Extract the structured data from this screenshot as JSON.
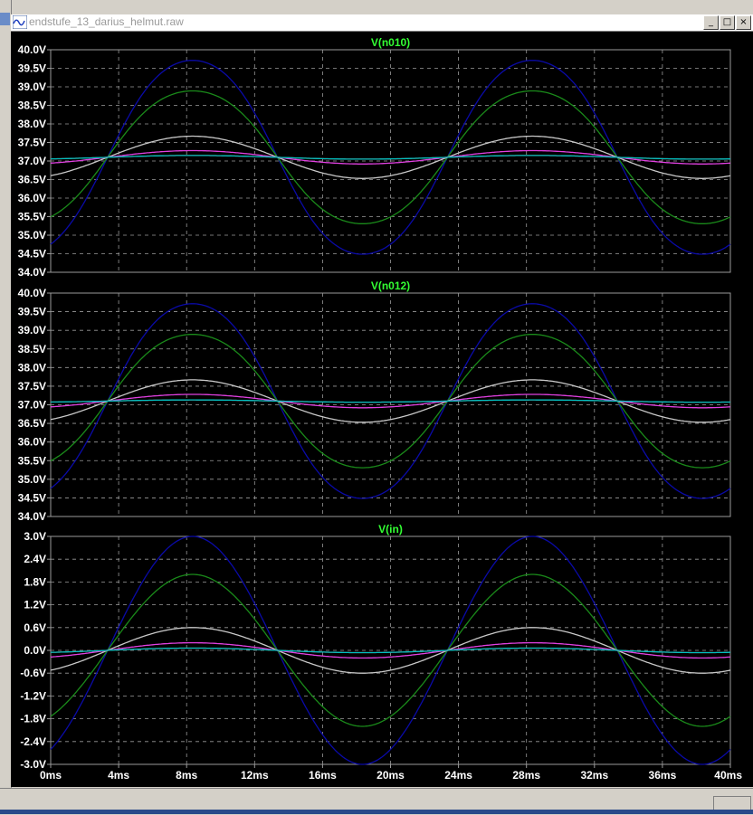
{
  "window": {
    "title": "endstufe_13_darius_helmut.raw",
    "buttons": [
      "_",
      "□",
      "×"
    ]
  },
  "colors": {
    "background": "#000000",
    "grid": "#9a9a9a",
    "title": "#33ff33",
    "axis_text": "#ffffff",
    "series": [
      "#0a0aa8",
      "#1a8a1a",
      "#c8c8c8",
      "#e040e0",
      "#cc4040",
      "#00c0c0"
    ]
  },
  "x_ticks": [
    "0ms",
    "4ms",
    "8ms",
    "12ms",
    "16ms",
    "20ms",
    "24ms",
    "28ms",
    "32ms",
    "36ms",
    "40ms"
  ],
  "chart_data": [
    {
      "type": "line",
      "title": "V(n010)",
      "xlim": [
        0,
        40
      ],
      "ylim": [
        34.0,
        40.0
      ],
      "yticks": [
        "40.0V",
        "39.5V",
        "39.0V",
        "38.5V",
        "38.0V",
        "37.5V",
        "37.0V",
        "36.5V",
        "36.0V",
        "35.5V",
        "35.0V",
        "34.5V",
        "34.0V"
      ],
      "offset": 37.1,
      "series": [
        {
          "amplitude": 2.7,
          "color_index": 0
        },
        {
          "amplitude": 1.85,
          "color_index": 1
        },
        {
          "amplitude": 0.57,
          "color_index": 2
        },
        {
          "amplitude": 0.18,
          "color_index": 3
        },
        {
          "amplitude": 0.05,
          "color_index": 4
        },
        {
          "amplitude": 0.05,
          "color_index": 5
        }
      ]
    },
    {
      "type": "line",
      "title": "V(n012)",
      "xlim": [
        0,
        40
      ],
      "ylim": [
        34.0,
        40.0
      ],
      "yticks": [
        "40.0V",
        "39.5V",
        "39.0V",
        "38.5V",
        "38.0V",
        "37.5V",
        "37.0V",
        "36.5V",
        "36.0V",
        "35.5V",
        "35.0V",
        "34.5V",
        "34.0V"
      ],
      "offset": 37.1,
      "series": [
        {
          "amplitude": 2.7,
          "color_index": 0
        },
        {
          "amplitude": 1.85,
          "color_index": 1
        },
        {
          "amplitude": 0.57,
          "color_index": 2
        },
        {
          "amplitude": 0.18,
          "color_index": 3
        },
        {
          "amplitude": 0.03,
          "color_index": 4
        },
        {
          "amplitude": 0.03,
          "color_index": 5
        }
      ]
    },
    {
      "type": "line",
      "title": "V(in)",
      "xlim": [
        0,
        40
      ],
      "ylim": [
        -3.0,
        3.0
      ],
      "yticks": [
        "3.0V",
        "2.4V",
        "1.8V",
        "1.2V",
        "0.6V",
        "0.0V",
        "-0.6V",
        "-1.2V",
        "-1.8V",
        "-2.4V",
        "-3.0V"
      ],
      "offset": 0,
      "series": [
        {
          "amplitude": 3.0,
          "color_index": 0
        },
        {
          "amplitude": 2.0,
          "color_index": 1
        },
        {
          "amplitude": 0.6,
          "color_index": 2
        },
        {
          "amplitude": 0.2,
          "color_index": 3
        },
        {
          "amplitude": 0.06,
          "color_index": 4
        },
        {
          "amplitude": 0.06,
          "color_index": 5
        }
      ]
    }
  ]
}
